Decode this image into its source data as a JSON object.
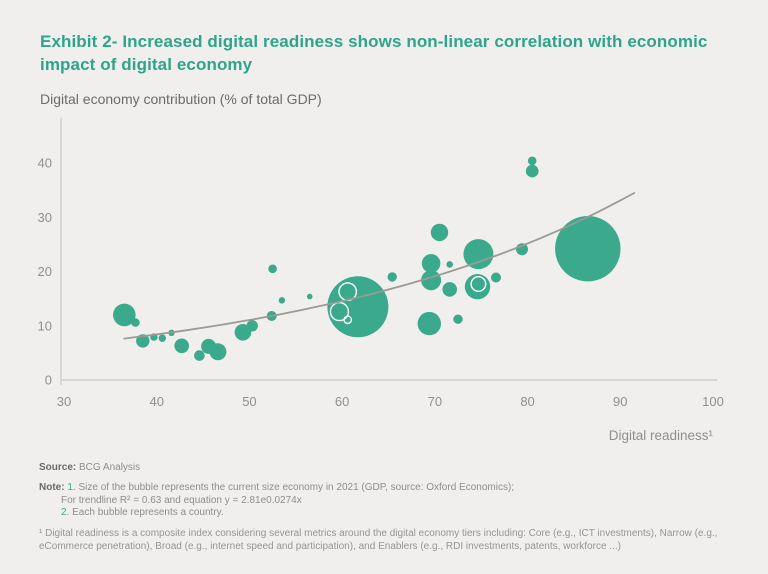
{
  "header": {
    "title": "Exhibit 2- Increased digital readiness shows non-linear correlation with economic impact of digital economy"
  },
  "chart_data": {
    "type": "scatter",
    "title": "Digital economy contribution (% of total GDP)",
    "xlabel": "Digital readiness¹",
    "ylabel": "Digital economy contribution (% of total GDP)",
    "xlim": [
      30,
      100
    ],
    "ylim": [
      0,
      48
    ],
    "x_ticks": [
      30,
      40,
      50,
      60,
      70,
      80,
      90,
      100
    ],
    "y_ticks": [
      0,
      10,
      20,
      30,
      40
    ],
    "grid": false,
    "legend": false,
    "bubble_color": "#3aa98c",
    "axis_color": "#c9c8c5",
    "tick_color": "#8f8f8c",
    "trendline": {
      "equation_text": "y = 2.81e0.0274x",
      "r_squared": 0.63,
      "a": 2.81,
      "k": 0.0274,
      "x_start": 36.5,
      "x_end": 91.5,
      "color": "#9b9a97"
    },
    "bubbles": [
      {
        "x": 36.5,
        "y": 12.0,
        "r": 11.3
      },
      {
        "x": 37.7,
        "y": 10.6,
        "r": 4.3
      },
      {
        "x": 38.5,
        "y": 7.2,
        "r": 6.7
      },
      {
        "x": 39.7,
        "y": 7.9,
        "r": 3.7
      },
      {
        "x": 40.6,
        "y": 7.7,
        "r": 3.7
      },
      {
        "x": 41.6,
        "y": 8.7,
        "r": 3.2
      },
      {
        "x": 42.7,
        "y": 6.3,
        "r": 7.3
      },
      {
        "x": 44.6,
        "y": 4.5,
        "r": 5.3
      },
      {
        "x": 45.6,
        "y": 6.2,
        "r": 7.5
      },
      {
        "x": 46.6,
        "y": 5.2,
        "r": 8.5
      },
      {
        "x": 49.3,
        "y": 8.8,
        "r": 8.3
      },
      {
        "x": 50.3,
        "y": 10.0,
        "r": 5.7
      },
      {
        "x": 52.4,
        "y": 11.8,
        "r": 5.0
      },
      {
        "x": 52.5,
        "y": 20.5,
        "r": 4.3
      },
      {
        "x": 53.5,
        "y": 14.7,
        "r": 3.2
      },
      {
        "x": 56.5,
        "y": 15.4,
        "r": 2.8
      },
      {
        "x": 61.7,
        "y": 13.5,
        "r": 30.5
      },
      {
        "x": 65.4,
        "y": 19.0,
        "r": 4.7
      },
      {
        "x": 69.4,
        "y": 10.4,
        "r": 11.7
      },
      {
        "x": 70.5,
        "y": 27.2,
        "r": 8.7
      },
      {
        "x": 69.6,
        "y": 21.5,
        "r": 9.3
      },
      {
        "x": 69.6,
        "y": 18.4,
        "r": 10.0
      },
      {
        "x": 71.6,
        "y": 21.3,
        "r": 3.3
      },
      {
        "x": 71.6,
        "y": 16.7,
        "r": 7.3
      },
      {
        "x": 72.5,
        "y": 11.2,
        "r": 4.7
      },
      {
        "x": 74.7,
        "y": 23.2,
        "r": 15.0
      },
      {
        "x": 74.6,
        "y": 17.2,
        "r": 12.7
      },
      {
        "x": 76.6,
        "y": 18.9,
        "r": 5.0
      },
      {
        "x": 79.4,
        "y": 24.1,
        "r": 6.0
      },
      {
        "x": 80.5,
        "y": 40.4,
        "r": 4.3
      },
      {
        "x": 80.5,
        "y": 38.5,
        "r": 6.3
      },
      {
        "x": 86.5,
        "y": 24.2,
        "r": 32.7
      }
    ],
    "overlap_rings": [
      {
        "x": 60.6,
        "y": 16.3,
        "r": 8.7
      },
      {
        "x": 59.7,
        "y": 12.6,
        "r": 9.0
      },
      {
        "x": 60.6,
        "y": 11.1,
        "r": 3.7
      },
      {
        "x": 74.7,
        "y": 17.7,
        "r": 7.3
      }
    ]
  },
  "source": {
    "label": "Source:",
    "value": "BCG Analysis"
  },
  "notes": {
    "label": "Note:",
    "item1_num": "1.",
    "item1_text": "Size of the bubble represents the current size economy in 2021 (GDP, source: Oxford Economics);",
    "item1_cont": "For trendline R² = 0.63 and equation y = 2.81e0.0274x",
    "item2_num": "2.",
    "item2_text": "Each bubble represents a country."
  },
  "footnote": {
    "text": "¹ Digital readiness is a composite index considering several metrics around the digital economy tiers including: Core (e.g., ICT investments), Narrow (e.g., eCommerce penetration), Broad (e.g., internet speed and participation), and Enablers (e.g., RDI investments, patents, workforce ...)"
  },
  "colors": {
    "title_accent": "#2da58a",
    "bubble_green": "#3aa98c",
    "note_number_green": "#3aa98c",
    "background": "#f0efed"
  }
}
